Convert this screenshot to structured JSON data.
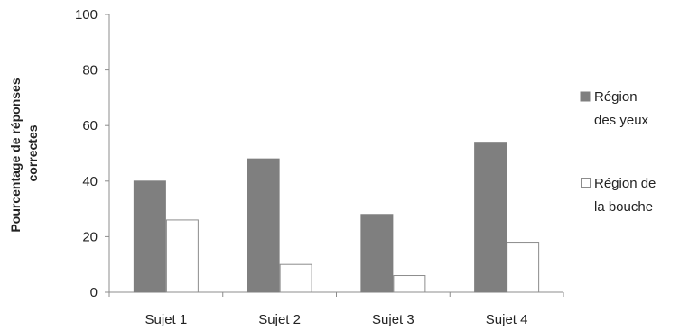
{
  "chart_data": {
    "type": "bar",
    "title": "",
    "xlabel": "",
    "ylabel_lines": [
      "Pourcentage de réponses",
      "correctes"
    ],
    "categories": [
      "Sujet 1",
      "Sujet 2",
      "Sujet 3",
      "Sujet 4"
    ],
    "ylim": [
      0,
      100
    ],
    "yticks": [
      0,
      20,
      40,
      60,
      80,
      100
    ],
    "grid": false,
    "legend_position": "right",
    "series": [
      {
        "name_lines": [
          "Région",
          "des yeux"
        ],
        "values": [
          40,
          48,
          28,
          54
        ],
        "fill": "#7f7f7f",
        "stroke": "#7f7f7f"
      },
      {
        "name_lines": [
          "Région de",
          "la bouche"
        ],
        "values": [
          26,
          10,
          6,
          18
        ],
        "fill": "#ffffff",
        "stroke": "#8c8c8c"
      }
    ]
  },
  "colors": {
    "axis": "#8c8c8c",
    "text": "#222222"
  }
}
